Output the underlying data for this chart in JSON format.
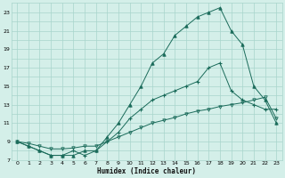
{
  "xlabel": "Humidex (Indice chaleur)",
  "bg_color": "#d4efe9",
  "grid_color": "#a8d5cc",
  "line_color": "#1a6b5a",
  "xlim": [
    -0.5,
    23.5
  ],
  "ylim": [
    7,
    24
  ],
  "xticks": [
    0,
    1,
    2,
    3,
    4,
    5,
    6,
    7,
    8,
    9,
    10,
    11,
    12,
    13,
    14,
    15,
    16,
    17,
    18,
    19,
    20,
    21,
    22,
    23
  ],
  "yticks": [
    7,
    8,
    9,
    10,
    11,
    12,
    13,
    14,
    15,
    16,
    17,
    18,
    19,
    20,
    21,
    22,
    23
  ],
  "ytick_labels": [
    "7",
    "",
    "9",
    "",
    "11",
    "",
    "13",
    "",
    "15",
    "",
    "17",
    "",
    "19",
    "",
    "21",
    "",
    "23"
  ],
  "s1_x": [
    0,
    1,
    2,
    3,
    4,
    5,
    6,
    7,
    8,
    9,
    10,
    11,
    12,
    13,
    14,
    15,
    16,
    17,
    18,
    19,
    20,
    21,
    22,
    23
  ],
  "s1_y": [
    9.0,
    8.5,
    8.0,
    7.5,
    7.5,
    8.0,
    7.5,
    8.0,
    9.0,
    10.0,
    11.5,
    12.5,
    13.5,
    14.0,
    14.5,
    15.0,
    15.5,
    17.0,
    17.5,
    14.5,
    13.5,
    13.0,
    12.5,
    12.5
  ],
  "s2_x": [
    0,
    1,
    2,
    3,
    4,
    5,
    6,
    7,
    8,
    9,
    10,
    11,
    12,
    13,
    14,
    15,
    16,
    17,
    18,
    19,
    20,
    21,
    22,
    23
  ],
  "s2_y": [
    9.0,
    8.5,
    8.0,
    7.5,
    7.5,
    7.5,
    8.0,
    8.0,
    9.5,
    11.0,
    13.0,
    15.0,
    17.5,
    18.5,
    20.5,
    21.5,
    22.5,
    23.0,
    23.5,
    21.0,
    19.5,
    15.0,
    13.5,
    11.0
  ],
  "s3_x": [
    0,
    1,
    2,
    3,
    4,
    5,
    6,
    7,
    8,
    9,
    10,
    11,
    12,
    13,
    14,
    15,
    16,
    17,
    18,
    19,
    20,
    21,
    22,
    23
  ],
  "s3_y": [
    9.0,
    8.8,
    8.5,
    8.2,
    8.2,
    8.3,
    8.5,
    8.5,
    9.0,
    9.5,
    10.0,
    10.5,
    11.0,
    11.3,
    11.6,
    12.0,
    12.3,
    12.5,
    12.8,
    13.0,
    13.2,
    13.5,
    13.8,
    11.5
  ],
  "s1_marker": "D",
  "s2_marker": "^",
  "s3_marker": "v"
}
